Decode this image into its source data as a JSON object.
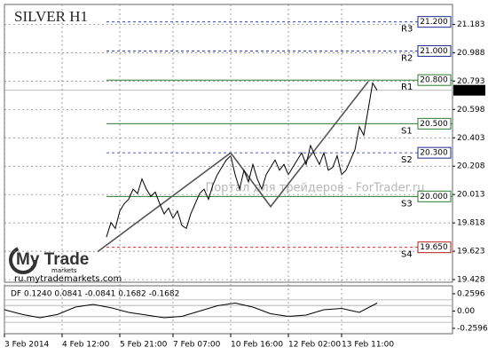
{
  "chart_data": [
    {
      "type": "line",
      "title": "SILVER H1",
      "watermark": "Портал для трейдеров - ForTrader.ru",
      "logo": {
        "brand": "My Trade",
        "sub": "markets",
        "url": "ru.mytrademarkets.com"
      },
      "x": [
        23,
        24,
        25,
        26,
        27,
        28,
        29,
        30,
        31,
        32,
        33,
        34,
        35,
        36,
        37,
        38,
        39,
        40,
        41,
        42,
        43,
        44,
        45,
        46,
        47,
        48,
        49,
        50,
        51,
        52,
        53,
        54,
        55,
        56,
        57,
        58,
        59,
        60,
        61,
        62,
        63,
        64,
        65,
        66,
        67,
        68,
        69,
        70,
        71,
        72,
        73,
        74,
        75,
        76,
        77,
        78,
        79,
        80,
        81,
        82,
        83,
        84
      ],
      "values": [
        19.72,
        19.82,
        19.78,
        19.9,
        19.95,
        19.98,
        20.05,
        20.02,
        20.12,
        20.05,
        20.0,
        20.03,
        19.95,
        19.88,
        19.92,
        19.85,
        19.9,
        19.8,
        19.78,
        19.88,
        19.95,
        20.02,
        20.05,
        19.98,
        20.08,
        20.15,
        20.2,
        20.25,
        20.28,
        20.15,
        20.05,
        20.18,
        20.1,
        20.22,
        20.12,
        20.05,
        20.15,
        20.2,
        20.25,
        20.18,
        20.22,
        20.15,
        20.2,
        20.25,
        20.3,
        20.22,
        20.35,
        20.28,
        20.22,
        20.3,
        20.18,
        20.2,
        20.28,
        20.15,
        20.18,
        20.25,
        20.32,
        20.48,
        20.42,
        20.6,
        20.78,
        20.73
      ],
      "color": "#000000",
      "zigzag": {
        "x": [
          21,
          51,
          60,
          82
        ],
        "values": [
          19.62,
          20.3,
          19.93,
          20.79
        ],
        "color": "#555555"
      },
      "levels": [
        {
          "name": "R3",
          "price": {
            "value": 21.2,
            "label": "21.200"
          },
          "color": "#1a2a8a",
          "dashed": true
        },
        {
          "name": "R2",
          "price": {
            "value": 21.0,
            "label": "21.000"
          },
          "color": "#1a2a8a",
          "dashed": true
        },
        {
          "name": "R1",
          "price": {
            "value": 20.8,
            "label": "20.800"
          },
          "color": "#2e7d32",
          "dashed": false
        },
        {
          "name": "S1",
          "price": {
            "value": 20.5,
            "label": "20.500"
          },
          "color": "#2e7d32",
          "dashed": false
        },
        {
          "name": "S2",
          "price": {
            "value": 20.3,
            "label": "20.300"
          },
          "color": "#1a2a8a",
          "dashed": true
        },
        {
          "name": "S3",
          "price": {
            "value": 20.0,
            "label": "20.000"
          },
          "color": "#2e7d32",
          "dashed": false
        },
        {
          "name": "S4",
          "price": {
            "value": 19.65,
            "label": "19.650"
          },
          "color": "#b71c1c",
          "dashed": true
        }
      ],
      "last_price": {
        "value": 20.73,
        "label": "20.730"
      },
      "xlim": [
        0,
        101
      ],
      "xticks": [
        {
          "value": 0,
          "label": "3 Feb 2014"
        },
        {
          "value": 13,
          "label": "4 Feb 12:00"
        },
        {
          "value": 26,
          "label": "5 Feb 21:00"
        },
        {
          "value": 38,
          "label": "7 Feb 07:00"
        },
        {
          "value": 51,
          "label": "10 Feb 16:00"
        },
        {
          "value": 64,
          "label": "12 Feb 02:00"
        },
        {
          "value": 76,
          "label": "13 Feb 11:00"
        }
      ],
      "ylim": [
        19.41,
        21.32
      ],
      "yticks": [
        21.183,
        20.988,
        20.793,
        20.598,
        20.403,
        20.208,
        20.013,
        19.818,
        19.623,
        19.428
      ],
      "grid": true
    },
    {
      "type": "line",
      "title": "DF 0.1240 0.0841 -0.0841 0.1682 -0.1682",
      "x": [
        0,
        4,
        8,
        12,
        16,
        20,
        24,
        28,
        32,
        36,
        40,
        44,
        48,
        52,
        56,
        60,
        64,
        68,
        72,
        76,
        80,
        84
      ],
      "values": [
        0.02,
        -0.05,
        -0.1,
        -0.05,
        0.06,
        0.1,
        0.05,
        -0.02,
        -0.06,
        -0.1,
        -0.08,
        0.0,
        0.08,
        0.12,
        0.06,
        -0.04,
        -0.08,
        -0.06,
        0.02,
        0.04,
        -0.02,
        0.12
      ],
      "color": "#000000",
      "levels": [
        0.0841,
        -0.0841,
        0.1682,
        -0.1682
      ],
      "ylim": [
        -0.34,
        0.38
      ],
      "yticks": [
        0.2596,
        {
          "value": 0,
          "label": "0.00"
        },
        -0.2596
      ]
    }
  ]
}
